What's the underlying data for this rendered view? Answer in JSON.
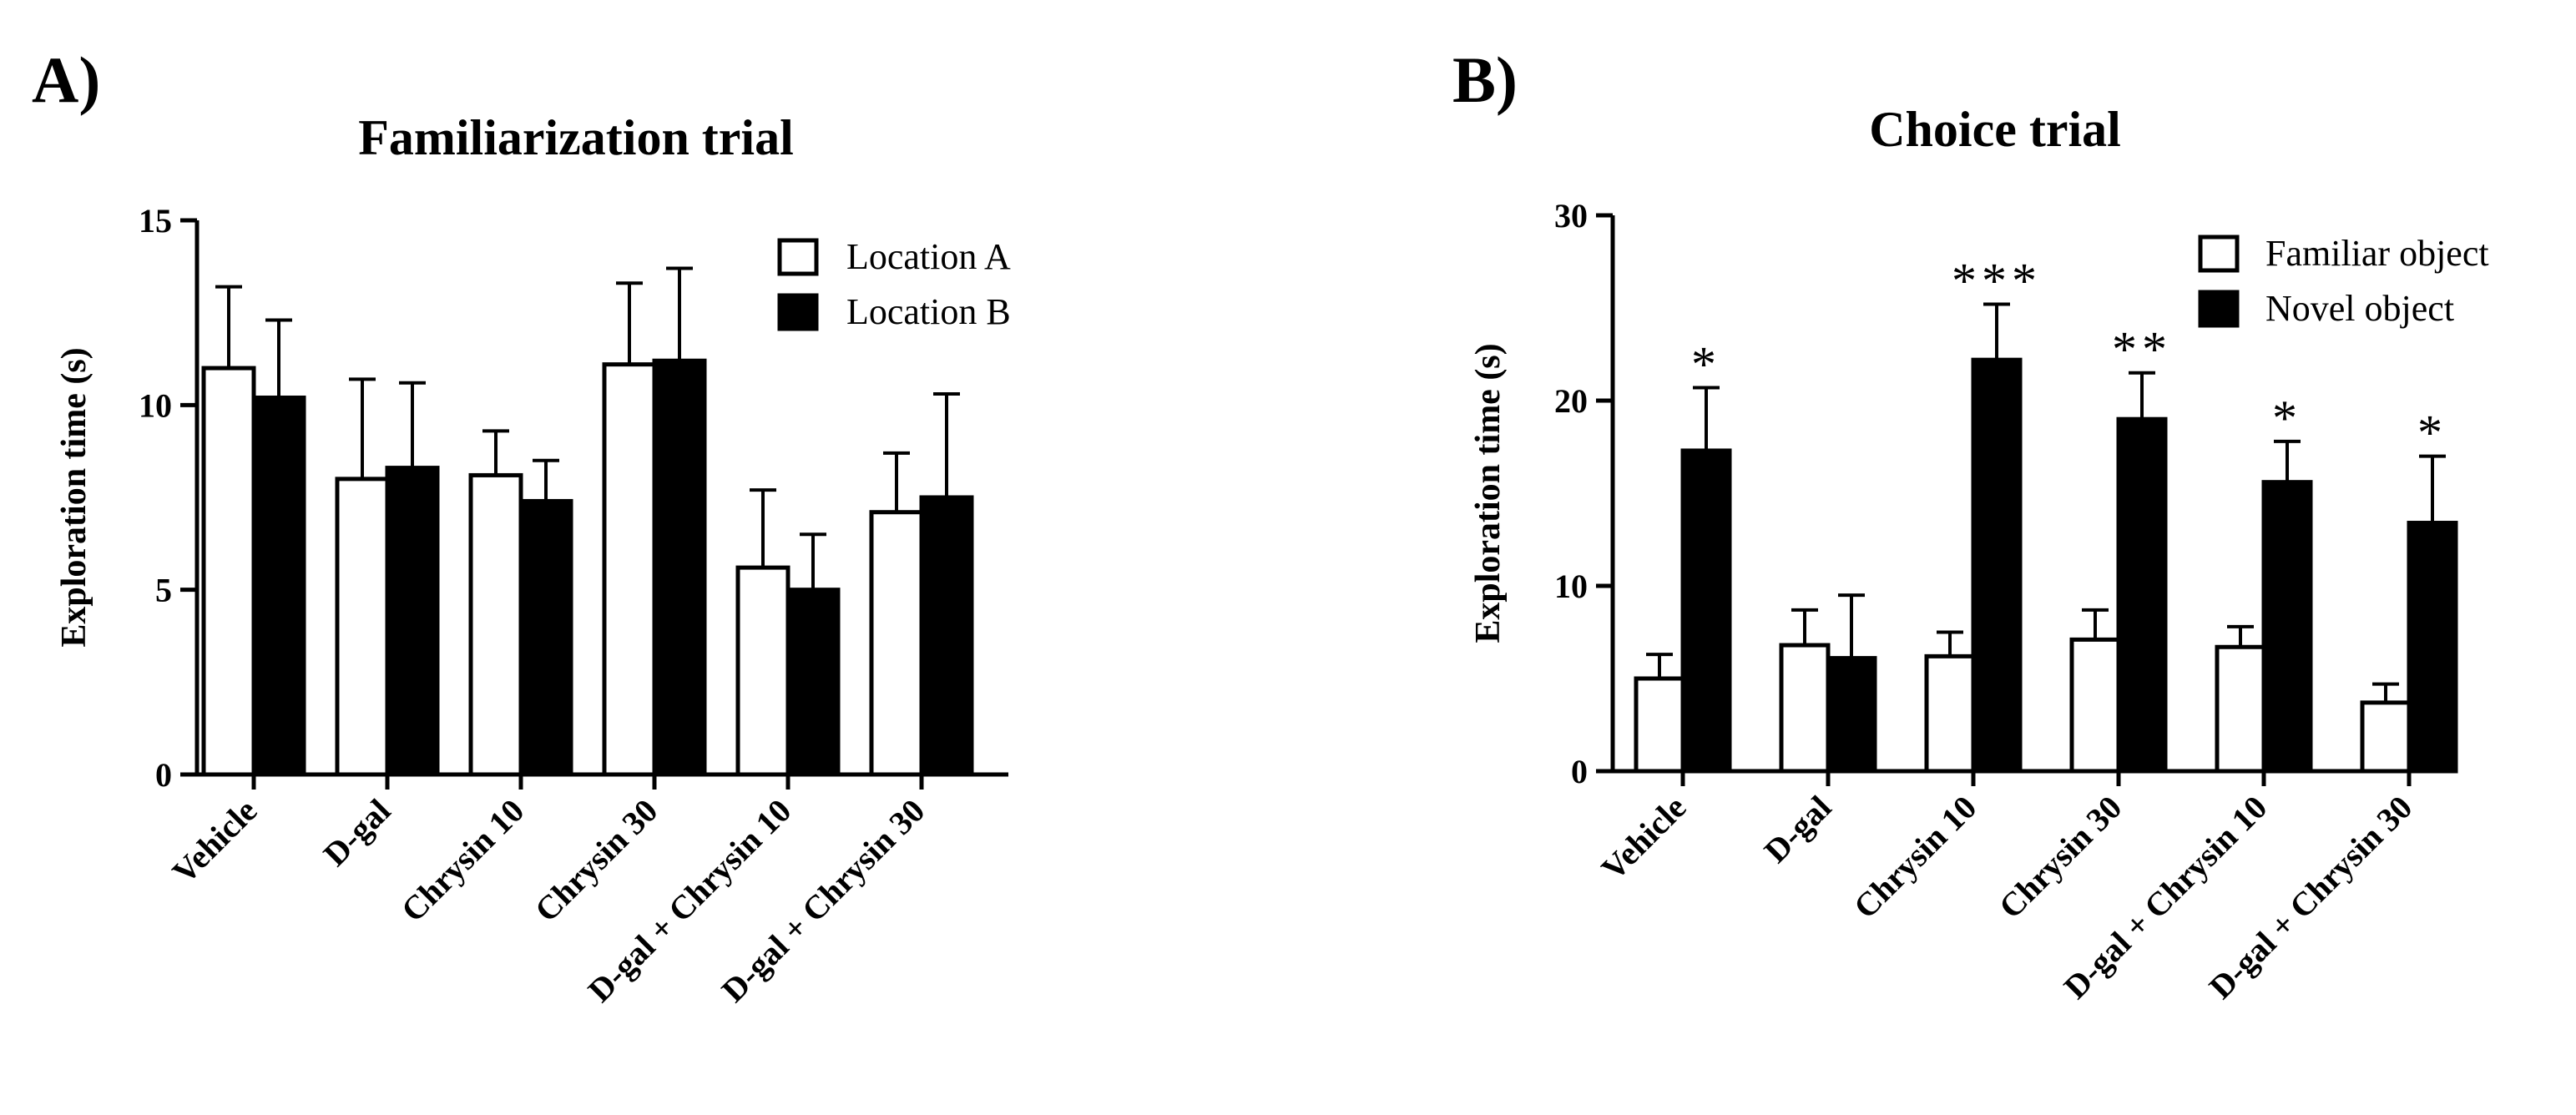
{
  "chart_data": [
    {
      "panel": "A)",
      "type": "bar",
      "title": "Familiarization trial",
      "xlabel": "",
      "ylabel": "Exploration time (s)",
      "ylim": [
        0,
        15
      ],
      "yticks": [
        0,
        5,
        10,
        15
      ],
      "categories": [
        "Vehicle",
        "D-gal",
        "Chrysin 10",
        "Chrysin 30",
        "D-gal + Chrysin 10",
        "D-gal + Chrysin 30"
      ],
      "series": [
        {
          "name": "Location A",
          "fill": "#ffffff",
          "values": [
            11.0,
            8.0,
            8.1,
            11.1,
            5.6,
            7.1
          ],
          "errors": [
            2.2,
            2.7,
            1.2,
            2.2,
            2.1,
            1.6
          ]
        },
        {
          "name": "Location B",
          "fill": "#000000",
          "values": [
            10.2,
            8.3,
            7.4,
            11.2,
            5.0,
            7.5
          ],
          "errors": [
            2.1,
            2.3,
            1.1,
            2.5,
            1.5,
            2.8
          ]
        }
      ],
      "annotations": [
        "",
        "",
        "",
        "",
        "",
        ""
      ],
      "legend": "top-right",
      "grid": false
    },
    {
      "panel": "B)",
      "type": "bar",
      "title": "Choice trial",
      "xlabel": "",
      "ylabel": "Exploration time (s)",
      "ylim": [
        0,
        30
      ],
      "yticks": [
        0,
        10,
        20,
        30
      ],
      "categories": [
        "Vehicle",
        "D-gal",
        "Chrysin 10",
        "Chrysin 30",
        "D-gal + Chrysin 10",
        "D-gal + Chrysin 30"
      ],
      "series": [
        {
          "name": "Familiar object",
          "fill": "#ffffff",
          "values": [
            5.0,
            6.8,
            6.2,
            7.1,
            6.7,
            3.7
          ],
          "errors": [
            1.3,
            1.9,
            1.3,
            1.6,
            1.1,
            1.0
          ]
        },
        {
          "name": "Novel object",
          "fill": "#000000",
          "values": [
            17.3,
            6.1,
            22.2,
            19.0,
            15.6,
            13.4
          ],
          "errors": [
            3.4,
            3.4,
            3.0,
            2.5,
            2.2,
            3.6
          ]
        }
      ],
      "annotations": [
        "*",
        "",
        "***",
        "**",
        "*",
        "*"
      ],
      "legend": "top-right",
      "grid": false
    }
  ]
}
